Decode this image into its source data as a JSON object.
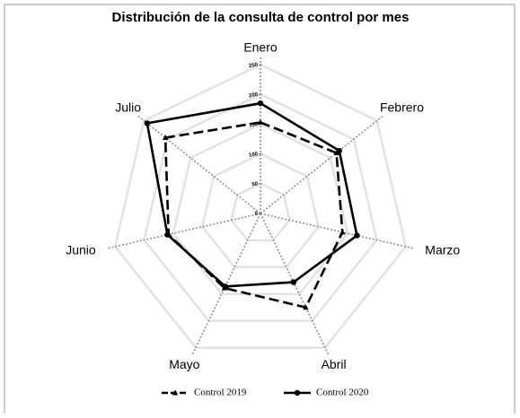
{
  "chart_data": {
    "type": "radar",
    "title": "Distribución de la consulta de control por mes",
    "categories": [
      "Enero",
      "Febrero",
      "Marzo",
      "Abril",
      "Mayo",
      "Junio",
      "Julio"
    ],
    "series": [
      {
        "name": "Control 2019",
        "color": "#000000",
        "line_style": "dashed",
        "marker": "triangle",
        "values": [
          153,
          163,
          141,
          175,
          139,
          158,
          204
        ]
      },
      {
        "name": "Control 2020",
        "color": "#000000",
        "line_style": "solid",
        "marker": "circle",
        "values": [
          185,
          169,
          166,
          128,
          136,
          160,
          243
        ]
      }
    ],
    "ylim": [
      0,
      250
    ],
    "yticks": [
      0,
      50,
      100,
      150,
      200,
      250
    ],
    "grid": true
  }
}
